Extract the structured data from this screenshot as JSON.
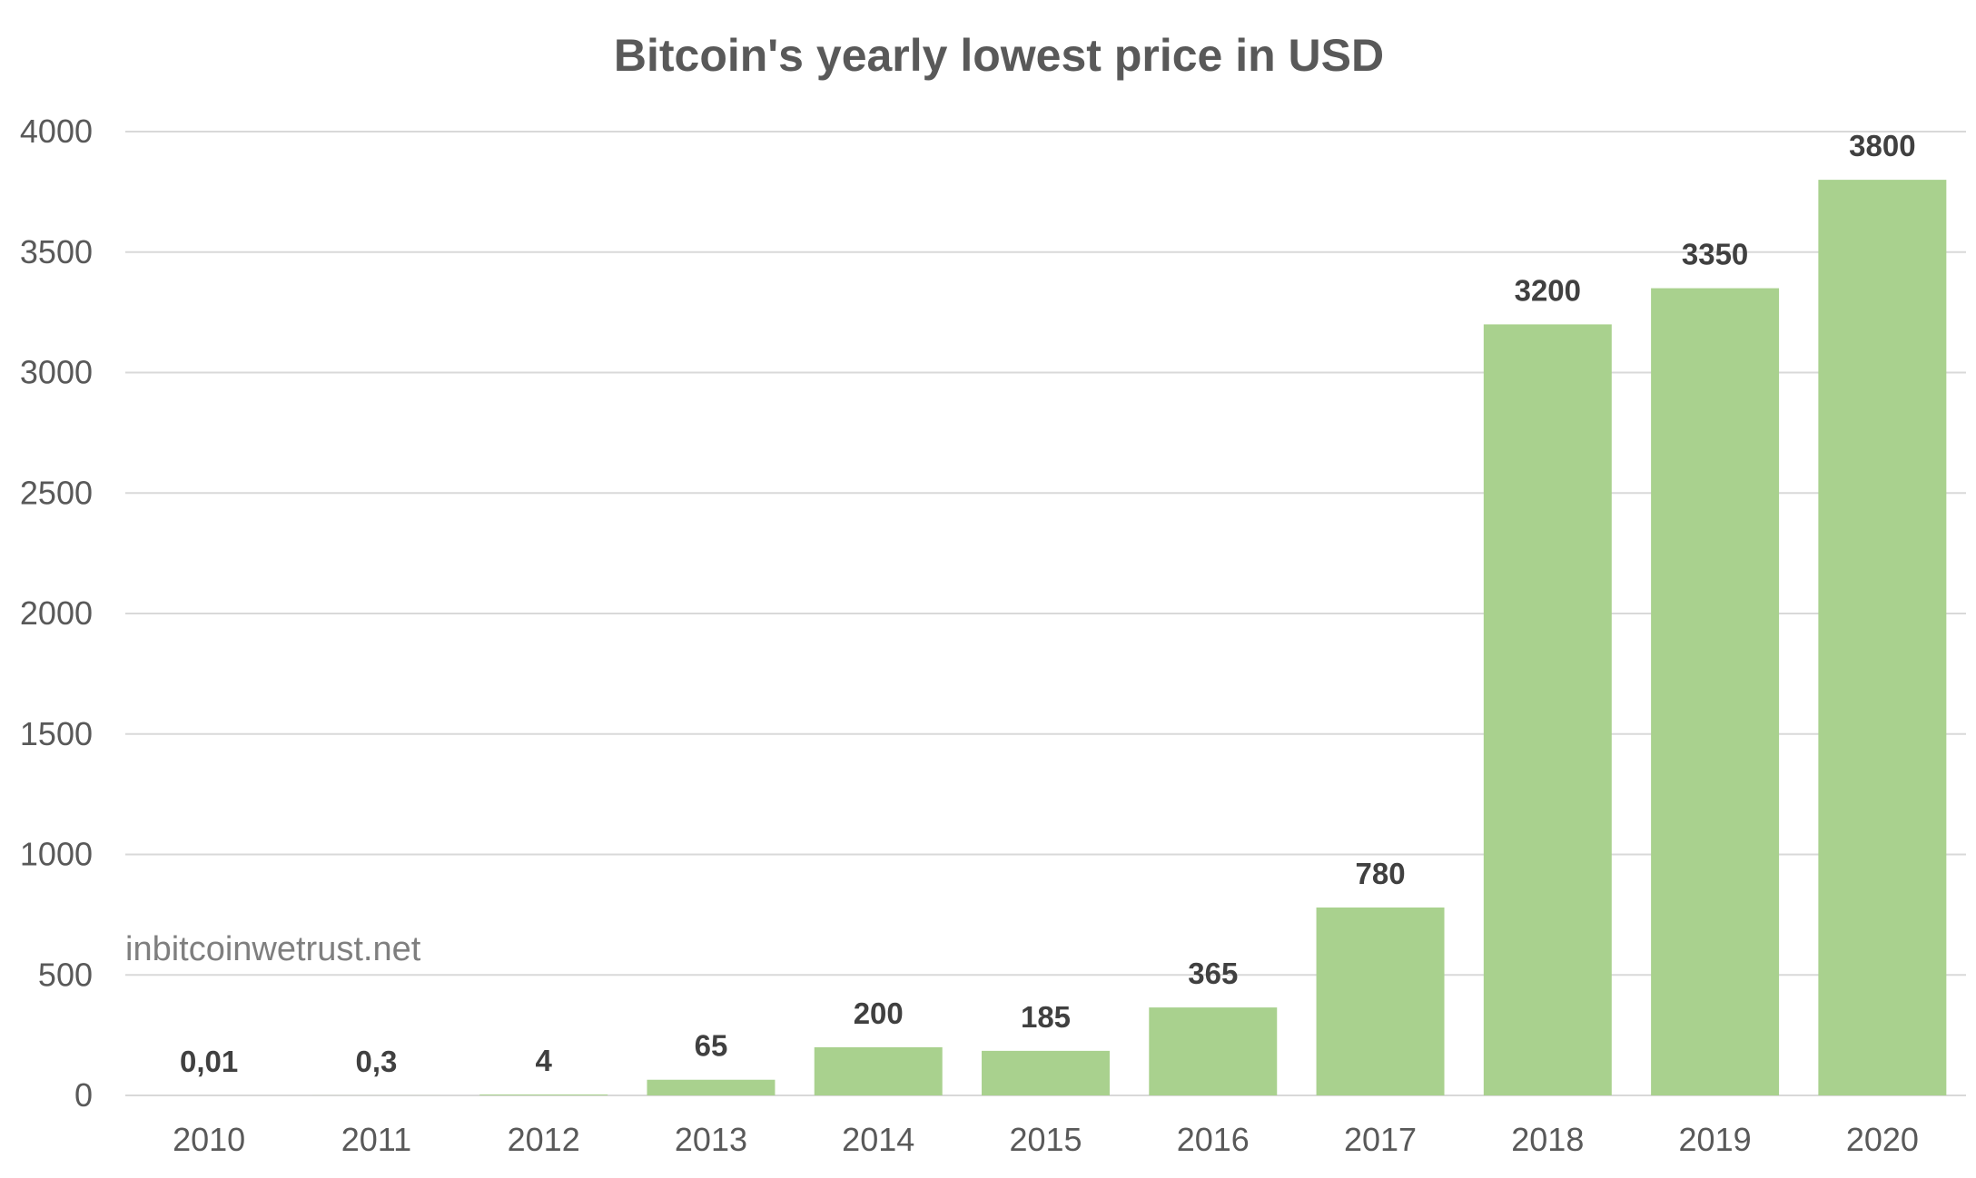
{
  "chart_data": {
    "type": "bar",
    "title": "Bitcoin's yearly lowest price in USD",
    "xlabel": "",
    "ylabel": "",
    "ylim": [
      0,
      4000
    ],
    "yticks": [
      0,
      500,
      1000,
      1500,
      2000,
      2500,
      3000,
      3500,
      4000
    ],
    "grid": true,
    "legend": "none",
    "bar_color": "#a9d18e",
    "categories": [
      "2010",
      "2011",
      "2012",
      "2013",
      "2014",
      "2015",
      "2016",
      "2017",
      "2018",
      "2019",
      "2020"
    ],
    "values": [
      0.01,
      0.3,
      4,
      65,
      200,
      185,
      365,
      780,
      3200,
      3350,
      3800
    ],
    "data_labels": [
      "0,01",
      "0,3",
      "4",
      "65",
      "200",
      "185",
      "365",
      "780",
      "3200",
      "3350",
      "3800"
    ],
    "watermark": "inbitcoinwetrust.net"
  }
}
